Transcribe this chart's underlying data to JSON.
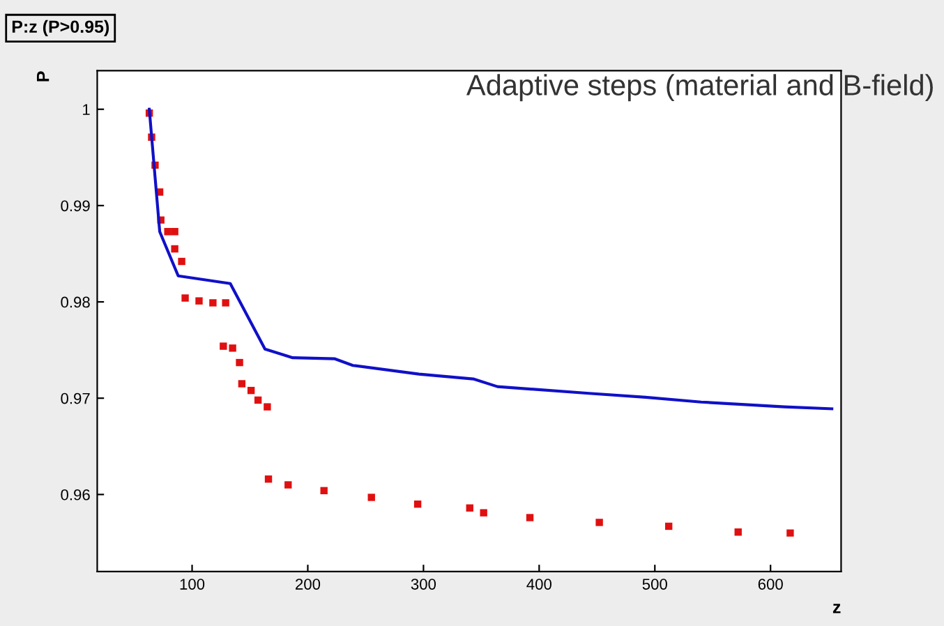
{
  "chart_data": {
    "type": "line",
    "title": "P:z (P>0.95)",
    "xlabel": "z",
    "ylabel": "P",
    "annotations": [
      "Adaptive steps (material and B-field)"
    ],
    "xlim": [
      18,
      661
    ],
    "ylim": [
      0.952,
      1.004
    ],
    "xticks": [
      100,
      200,
      300,
      400,
      500,
      600
    ],
    "yticks": [
      {
        "value": 0.96,
        "label": "0.96"
      },
      {
        "value": 0.97,
        "label": "0.97"
      },
      {
        "value": 0.98,
        "label": "0.98"
      },
      {
        "value": 0.99,
        "label": "0.99"
      },
      1
    ],
    "grid": false,
    "legend": false,
    "series": [
      {
        "color": "#1010c8",
        "marker": "none",
        "x": [
          63,
          72,
          88,
          133,
          163,
          187,
          223,
          239,
          296,
          343,
          364,
          443,
          492,
          540,
          612,
          653
        ],
        "values": [
          1.0,
          0.9873,
          0.9827,
          0.9819,
          0.9751,
          0.9742,
          0.9741,
          0.9734,
          0.9725,
          0.972,
          0.9712,
          0.9705,
          0.9701,
          0.9696,
          0.9691,
          0.9689
        ]
      },
      {
        "type": "scatter",
        "color": "#e01010",
        "marker": "square",
        "x": [
          63,
          65,
          68,
          72,
          73,
          79,
          85,
          85,
          91,
          94,
          106,
          118,
          129,
          127,
          135,
          141,
          143,
          151,
          157,
          165,
          166,
          183,
          214,
          255,
          295,
          340,
          352,
          392,
          452,
          512,
          572,
          617
        ],
        "values": [
          0.9996,
          0.9971,
          0.9942,
          0.9914,
          0.9885,
          0.9873,
          0.9873,
          0.9855,
          0.9842,
          0.9804,
          0.9801,
          0.9799,
          0.9799,
          0.9754,
          0.9752,
          0.9737,
          0.9715,
          0.9708,
          0.9698,
          0.9691,
          0.9616,
          0.961,
          0.9604,
          0.9597,
          0.959,
          0.9586,
          0.9581,
          0.9576,
          0.9571,
          0.9567,
          0.9561,
          0.956
        ]
      }
    ]
  }
}
